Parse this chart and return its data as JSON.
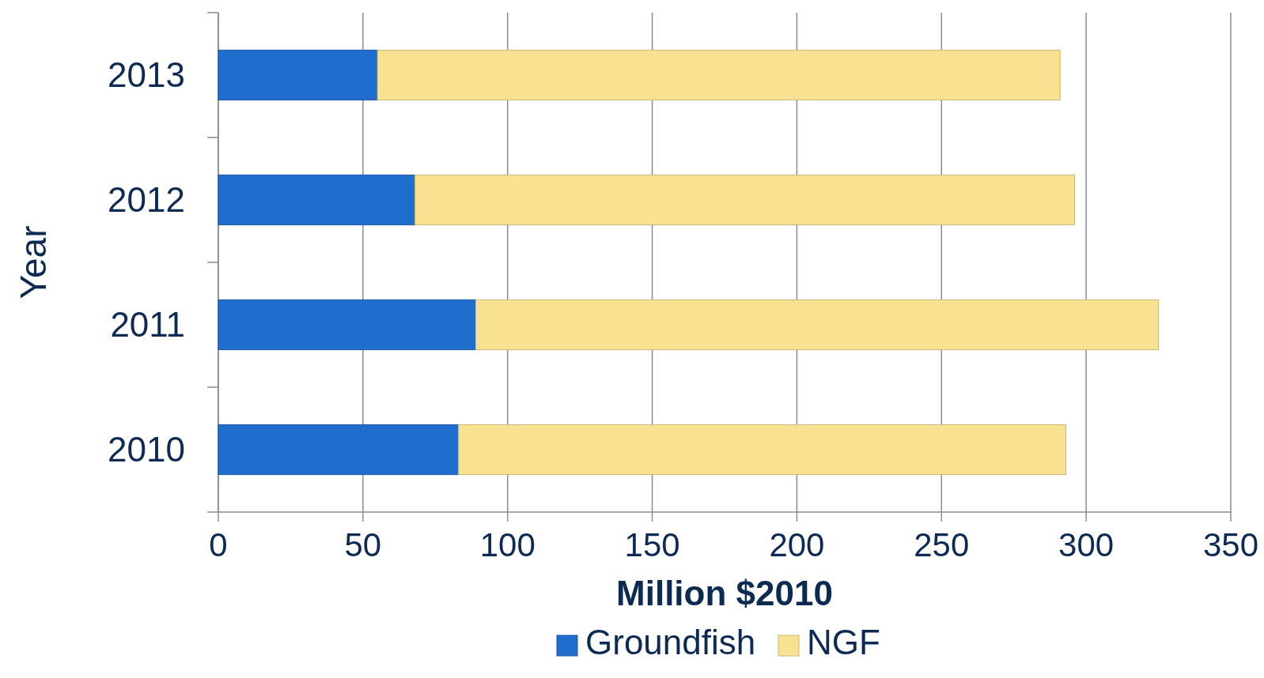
{
  "chart_data": {
    "type": "bar",
    "orientation": "horizontal",
    "stacked": true,
    "ylabel": "Year",
    "xlabel": "Million $2010",
    "categories": [
      "2013",
      "2012",
      "2011",
      "2010"
    ],
    "series": [
      {
        "name": "Groundfish",
        "color": "#1f6dcc",
        "values": [
          55,
          68,
          89,
          83
        ]
      },
      {
        "name": "NGF",
        "color": "#f8e291",
        "values": [
          236,
          228,
          236,
          210
        ]
      }
    ],
    "xlim": [
      0,
      350
    ],
    "xticks": [
      0,
      50,
      100,
      150,
      200,
      250,
      300,
      350
    ],
    "grid": "x",
    "legend": "bottom"
  }
}
